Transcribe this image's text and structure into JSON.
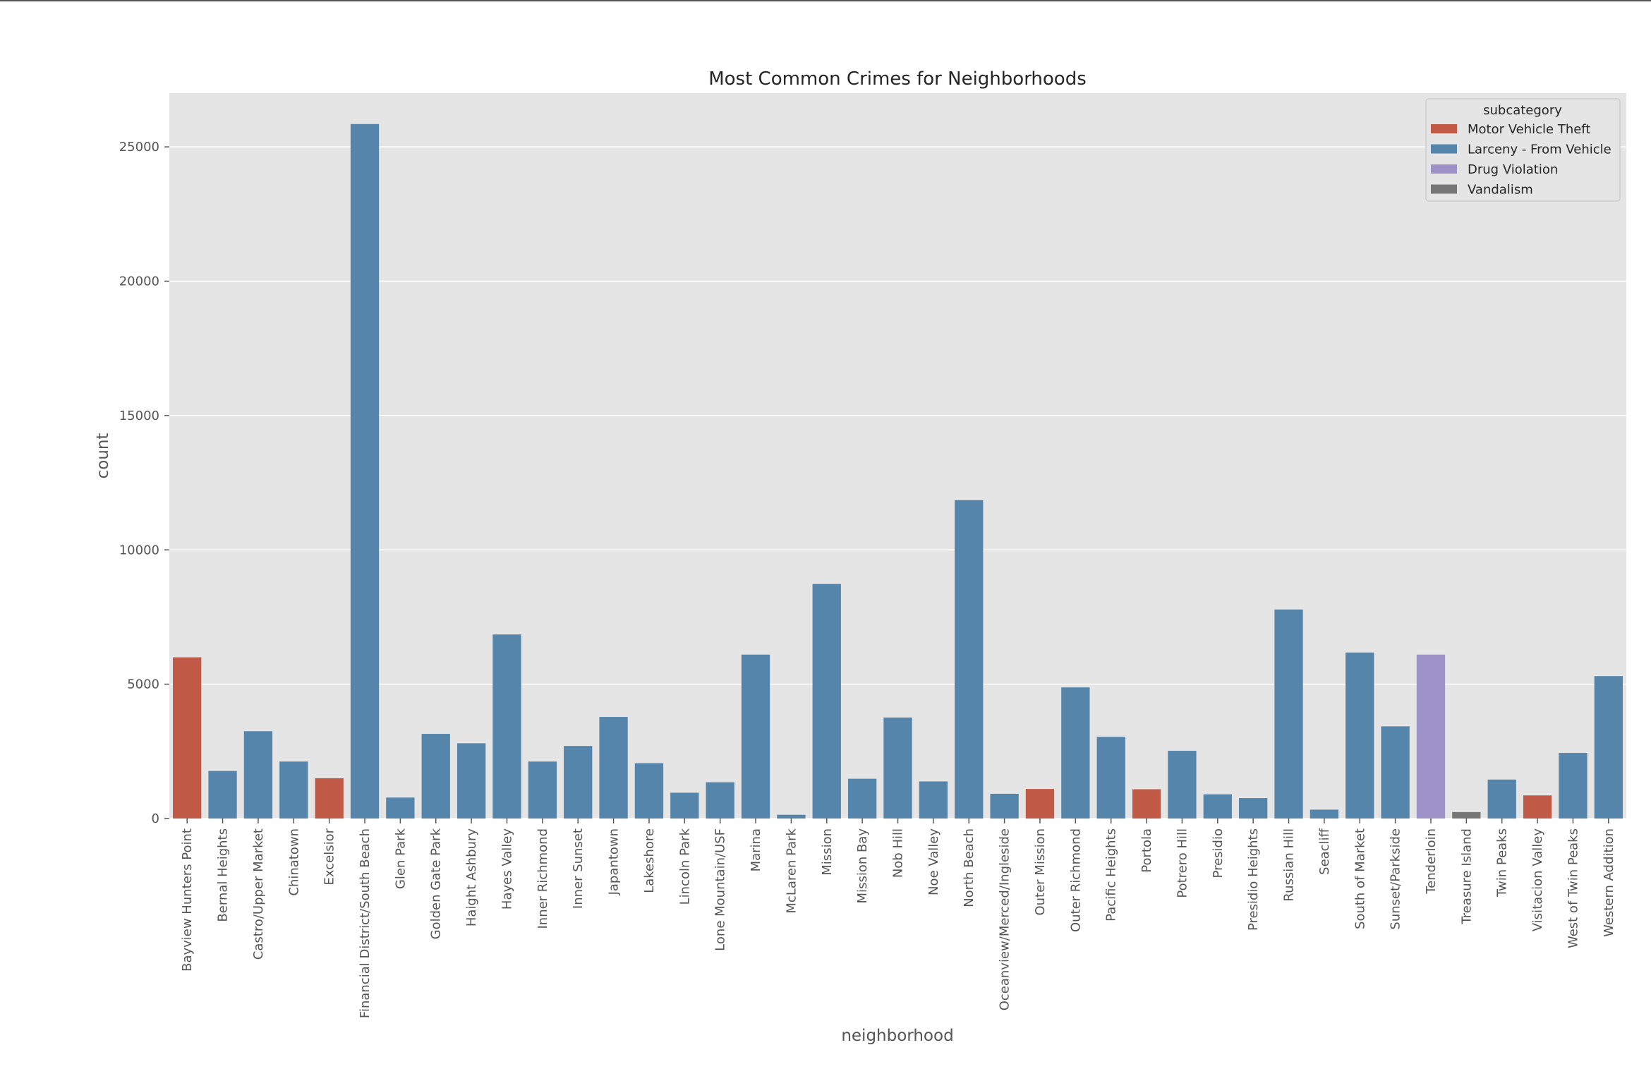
{
  "chart_data": {
    "type": "bar",
    "title": "Most Common Crimes for Neighborhoods",
    "xlabel": "neighborhood",
    "ylabel": "count",
    "ylim": [
      0,
      27000
    ],
    "yticks": [
      0,
      5000,
      10000,
      15000,
      20000,
      25000
    ],
    "grid": true,
    "legend_position": "top-right",
    "legend_title": "subcategory",
    "series_names": [
      "Motor Vehicle Theft",
      "Larceny - From Vehicle",
      "Drug Violation",
      "Vandalism"
    ],
    "colors": {
      "Motor Vehicle Theft": "#c25a48",
      "Larceny - From Vehicle": "#5585ab",
      "Drug Violation": "#9c92c8",
      "Vandalism": "#777777"
    },
    "categories": [
      "Bayview Hunters Point",
      "Bernal Heights",
      "Castro/Upper Market",
      "Chinatown",
      "Excelsior",
      "Financial District/South Beach",
      "Glen Park",
      "Golden Gate Park",
      "Haight Ashbury",
      "Hayes Valley",
      "Inner Richmond",
      "Inner Sunset",
      "Japantown",
      "Lakeshore",
      "Lincoln Park",
      "Lone Mountain/USF",
      "Marina",
      "McLaren Park",
      "Mission",
      "Mission Bay",
      "Nob Hill",
      "Noe Valley",
      "North Beach",
      "Oceanview/Merced/Ingleside",
      "Outer Mission",
      "Outer Richmond",
      "Pacific Heights",
      "Portola",
      "Potrero Hill",
      "Presidio",
      "Presidio Heights",
      "Russian Hill",
      "Seacliff",
      "South of Market",
      "Sunset/Parkside",
      "Tenderloin",
      "Treasure Island",
      "Twin Peaks",
      "Visitacion Valley",
      "West of Twin Peaks",
      "Western Addition"
    ],
    "values": [
      6000,
      1770,
      3250,
      2120,
      1500,
      25850,
      780,
      3150,
      2800,
      6850,
      2120,
      2700,
      3780,
      2060,
      960,
      1350,
      6100,
      140,
      8730,
      1480,
      3760,
      1380,
      11850,
      920,
      1100,
      4880,
      3040,
      1090,
      2520,
      900,
      760,
      7780,
      330,
      6180,
      3430,
      6100,
      240,
      1450,
      860,
      2440,
      5300
    ],
    "subcategory": [
      "Motor Vehicle Theft",
      "Larceny - From Vehicle",
      "Larceny - From Vehicle",
      "Larceny - From Vehicle",
      "Motor Vehicle Theft",
      "Larceny - From Vehicle",
      "Larceny - From Vehicle",
      "Larceny - From Vehicle",
      "Larceny - From Vehicle",
      "Larceny - From Vehicle",
      "Larceny - From Vehicle",
      "Larceny - From Vehicle",
      "Larceny - From Vehicle",
      "Larceny - From Vehicle",
      "Larceny - From Vehicle",
      "Larceny - From Vehicle",
      "Larceny - From Vehicle",
      "Larceny - From Vehicle",
      "Larceny - From Vehicle",
      "Larceny - From Vehicle",
      "Larceny - From Vehicle",
      "Larceny - From Vehicle",
      "Larceny - From Vehicle",
      "Larceny - From Vehicle",
      "Motor Vehicle Theft",
      "Larceny - From Vehicle",
      "Larceny - From Vehicle",
      "Motor Vehicle Theft",
      "Larceny - From Vehicle",
      "Larceny - From Vehicle",
      "Larceny - From Vehicle",
      "Larceny - From Vehicle",
      "Larceny - From Vehicle",
      "Larceny - From Vehicle",
      "Larceny - From Vehicle",
      "Drug Violation",
      "Vandalism",
      "Larceny - From Vehicle",
      "Motor Vehicle Theft",
      "Larceny - From Vehicle",
      "Larceny - From Vehicle"
    ]
  }
}
